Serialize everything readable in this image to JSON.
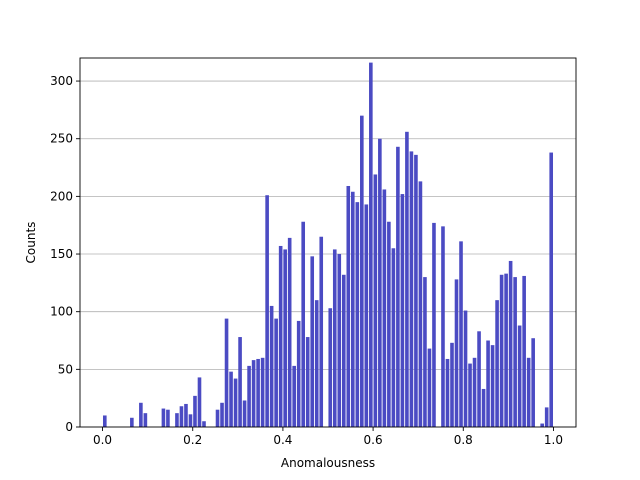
{
  "chart_data": {
    "type": "bar",
    "xlabel": "Anomalousness",
    "ylabel": "Counts",
    "xlim": [
      -0.05,
      1.05
    ],
    "ylim": [
      0,
      320
    ],
    "xticks": [
      0.0,
      0.2,
      0.4,
      0.6,
      0.8,
      1.0
    ],
    "xtick_labels": [
      "0.0",
      "0.2",
      "0.4",
      "0.6",
      "0.8",
      "1.0"
    ],
    "yticks": [
      0,
      50,
      100,
      150,
      200,
      250,
      300
    ],
    "ytick_labels": [
      "0",
      "50",
      "100",
      "150",
      "200",
      "250",
      "300"
    ],
    "grid": "horizontal",
    "bar_color": "#4B4BC3",
    "bin_width": 0.01,
    "x": [
      0.005,
      0.015,
      0.025,
      0.035,
      0.045,
      0.055,
      0.065,
      0.075,
      0.085,
      0.095,
      0.105,
      0.115,
      0.125,
      0.135,
      0.145,
      0.155,
      0.165,
      0.175,
      0.185,
      0.195,
      0.205,
      0.215,
      0.225,
      0.235,
      0.245,
      0.255,
      0.265,
      0.275,
      0.285,
      0.295,
      0.305,
      0.315,
      0.325,
      0.335,
      0.345,
      0.355,
      0.365,
      0.375,
      0.385,
      0.395,
      0.405,
      0.415,
      0.425,
      0.435,
      0.445,
      0.455,
      0.465,
      0.475,
      0.485,
      0.495,
      0.505,
      0.515,
      0.525,
      0.535,
      0.545,
      0.555,
      0.565,
      0.575,
      0.585,
      0.595,
      0.605,
      0.615,
      0.625,
      0.635,
      0.645,
      0.655,
      0.665,
      0.675,
      0.685,
      0.695,
      0.705,
      0.715,
      0.725,
      0.735,
      0.745,
      0.755,
      0.765,
      0.775,
      0.785,
      0.795,
      0.805,
      0.815,
      0.825,
      0.835,
      0.845,
      0.855,
      0.865,
      0.875,
      0.885,
      0.895,
      0.905,
      0.915,
      0.925,
      0.935,
      0.945,
      0.955,
      0.965,
      0.975,
      0.985,
      0.995
    ],
    "values": [
      10,
      0,
      0,
      0,
      0,
      0,
      8,
      0,
      21,
      12,
      0,
      0,
      0,
      16,
      15,
      0,
      12,
      18,
      20,
      11,
      27,
      43,
      5,
      0,
      0,
      15,
      21,
      94,
      48,
      42,
      78,
      23,
      53,
      58,
      59,
      60,
      201,
      105,
      94,
      157,
      154,
      164,
      53,
      92,
      178,
      78,
      148,
      110,
      165,
      0,
      103,
      154,
      150,
      132,
      209,
      204,
      195,
      270,
      193,
      316,
      219,
      250,
      206,
      178,
      155,
      243,
      202,
      256,
      239,
      236,
      213,
      130,
      68,
      177,
      0,
      174,
      59,
      73,
      128,
      161,
      101,
      55,
      60,
      83,
      33,
      75,
      71,
      110,
      132,
      133,
      144,
      130,
      88,
      131,
      60,
      77,
      0,
      3,
      17,
      238
    ]
  }
}
